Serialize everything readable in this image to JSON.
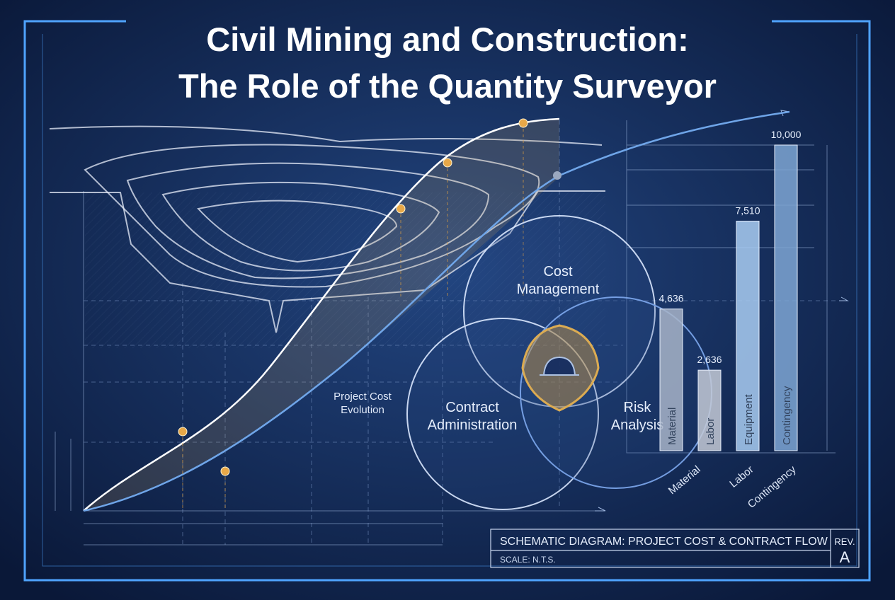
{
  "title": [
    "Civil Mining and Construction:",
    "The Role of the Quantity Surveyor"
  ],
  "curve_label": [
    "Project Cost",
    "Evolution"
  ],
  "venn": [
    {
      "label": [
        "Cost",
        "Management"
      ]
    },
    {
      "label": [
        "Contract",
        "Administration"
      ]
    },
    {
      "label": [
        "Risk",
        "Analysis"
      ]
    }
  ],
  "bars": {
    "categories": [
      "Material",
      "Labor",
      "Equipment",
      "Contingency"
    ],
    "values": [
      4636,
      2636,
      7510,
      10000
    ],
    "value_labels": [
      "4,636",
      "2,636",
      "7,510",
      "10,000"
    ]
  },
  "axis_labels": [
    "Material",
    "Labor",
    "Contingency"
  ],
  "title_block": {
    "heading": "SCHEMATIC DIAGRAM: PROJECT COST & CONTRACT FLOW",
    "scale": "SCALE: N.T.S.",
    "rev_label": "REV.",
    "rev": "A"
  }
}
